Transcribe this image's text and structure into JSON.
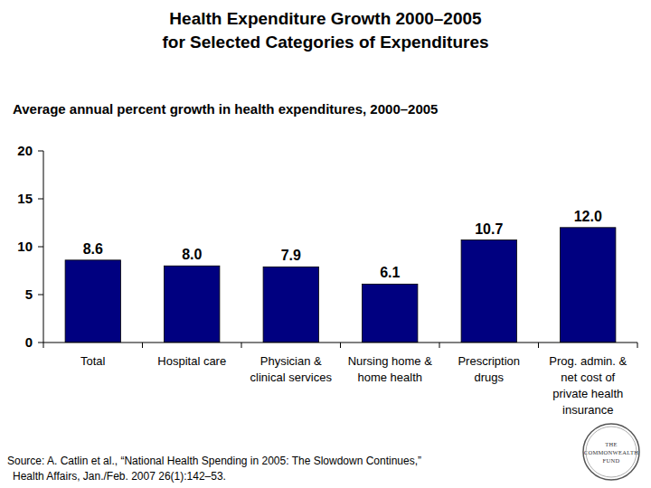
{
  "chart_data": {
    "type": "bar",
    "title": "Health Expenditure Growth 2000–2005\nfor Selected Categories of Expenditures",
    "subtitle": "Average annual percent growth in health expenditures, 2000–2005",
    "categories": [
      "Total",
      "Hospital care",
      "Physician &\nclinical services",
      "Nursing home &\nhome health",
      "Prescription\ndrugs",
      "Prog. admin. &\nnet cost of\nprivate health\ninsurance"
    ],
    "values": [
      8.6,
      8.0,
      7.9,
      6.1,
      10.7,
      12.0
    ],
    "value_labels": [
      "8.6",
      "8.0",
      "7.9",
      "6.1",
      "10.7",
      "12.0"
    ],
    "color": "#000080",
    "ylim": [
      0,
      20
    ],
    "yticks": [
      0,
      5,
      10,
      15,
      20
    ],
    "grid": false,
    "data_labels": true,
    "source": [
      "Source: A. Catlin et al., “National Health Spending in 2005: The Slowdown Continues,”",
      "Health Affairs, Jan./Feb. 2007 26(1):142–53."
    ],
    "logo": [
      "THE",
      "COMMONWEALTH",
      "FUND"
    ]
  }
}
